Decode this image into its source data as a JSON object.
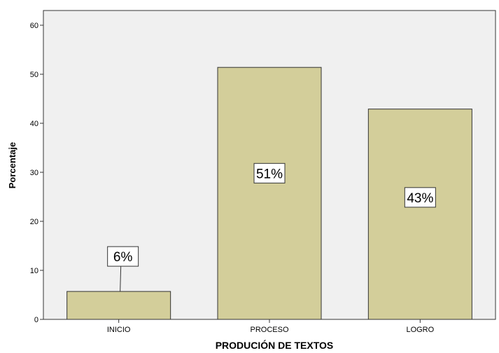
{
  "chart_data": {
    "type": "bar",
    "title": "",
    "xlabel": "PRODUCIÓN DE TEXTOS",
    "ylabel": "Porcentaje",
    "categories": [
      "INICIO",
      "PROCESO",
      "LOGRO"
    ],
    "values": [
      5.7,
      51.4,
      42.9
    ],
    "data_labels": [
      "6%",
      "51%",
      "43%"
    ],
    "ylim": [
      0,
      63
    ],
    "yticks": [
      0,
      10,
      20,
      30,
      40,
      50,
      60
    ],
    "grid": false,
    "legend": "none",
    "colors": {
      "bar_fill": "#d3ce9a",
      "plot_background": "#f0f0f0",
      "frame": "#333333"
    }
  }
}
